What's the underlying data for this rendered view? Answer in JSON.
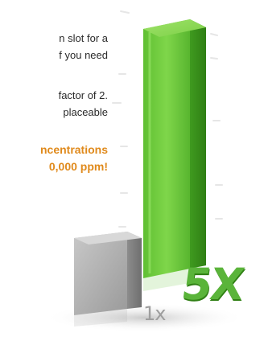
{
  "text": {
    "line_1": "n slot for a",
    "line_2": "f you need",
    "line_3": "factor of 2.",
    "line_4": "placeable"
  },
  "highlight": {
    "line_1": "ncentrations",
    "line_2": "0,000 ppm!"
  },
  "bars": {
    "small_label": "1x",
    "large_label": "5X",
    "small_multiplier": 1,
    "large_multiplier": 5
  },
  "colors": {
    "accent": "#e08a1c",
    "green_bar": "#63c23a",
    "gray_bar": "#a9a9a9"
  }
}
